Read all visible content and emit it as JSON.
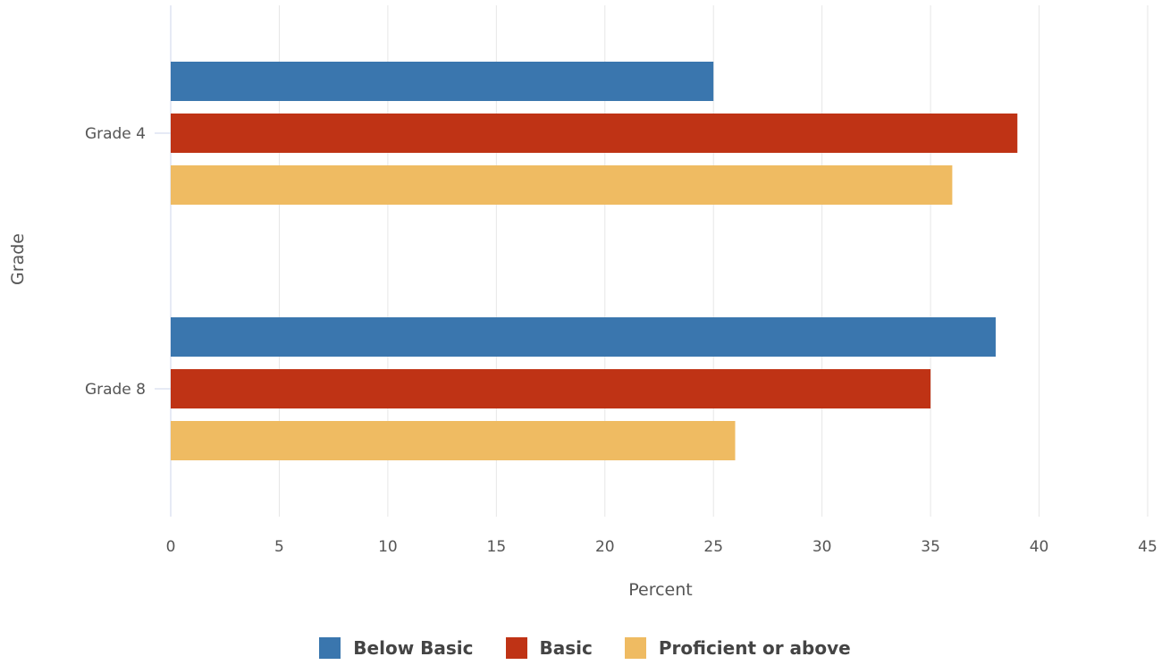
{
  "chart_data": {
    "type": "bar",
    "orientation": "horizontal",
    "categories": [
      "Grade 4",
      "Grade 8"
    ],
    "series": [
      {
        "name": "Below Basic",
        "color": "#3a76ae",
        "values": [
          25,
          38
        ]
      },
      {
        "name": "Basic",
        "color": "#bf3315",
        "values": [
          39,
          35
        ]
      },
      {
        "name": "Proficient or above",
        "color": "#efbb62",
        "values": [
          36,
          26
        ]
      }
    ],
    "xlabel": "Percent",
    "ylabel": "Grade",
    "xlim": [
      0,
      45
    ],
    "xticks": [
      "0",
      "5",
      "10",
      "15",
      "20",
      "25",
      "30",
      "35",
      "40",
      "45"
    ],
    "grid": "vertical",
    "legend_position": "bottom-center"
  }
}
